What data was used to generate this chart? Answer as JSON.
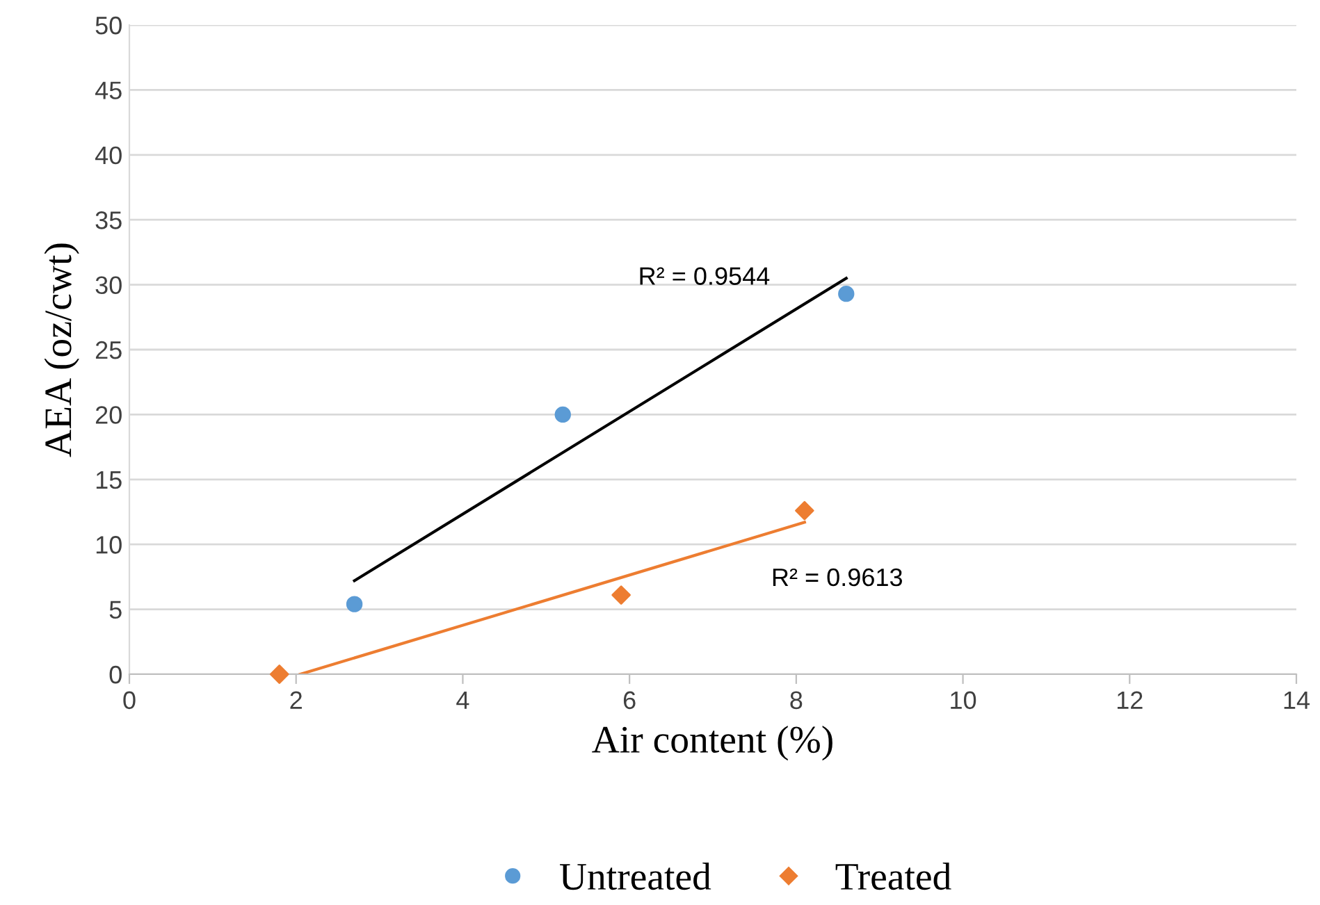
{
  "chart_data": {
    "type": "scatter",
    "xlabel": "Air content (%)",
    "ylabel": "AEA (oz/cwt)",
    "series": [
      {
        "name": "Untreated",
        "marker": "circle",
        "color": "#5b9bd5",
        "x": [
          2.7,
          5.2,
          8.6
        ],
        "values": [
          5.4,
          20.0,
          29.3
        ]
      },
      {
        "name": "Treated",
        "marker": "diamond",
        "color": "#ed7d31",
        "x": [
          1.8,
          5.9,
          8.1
        ],
        "values": [
          0,
          6.1,
          12.6
        ]
      },
      {
        "type": "line",
        "marker": "none",
        "color": "#000000",
        "x": [
          2.7,
          8.6
        ],
        "values": [
          7.2,
          30.5
        ]
      },
      {
        "type": "line",
        "marker": "none",
        "color": "#ed7d31",
        "x": [
          2.05,
          8.1
        ],
        "values": [
          0,
          11.7
        ]
      }
    ],
    "annotations": [
      "R² = 0.9544",
      "R² = 0.9613"
    ],
    "xlim": [
      0,
      14
    ],
    "xticks": [
      0,
      2,
      4,
      6,
      8,
      10,
      12,
      14
    ],
    "ylim": [
      0,
      50
    ],
    "yticks": [
      0,
      5,
      10,
      15,
      20,
      25,
      30,
      35,
      40,
      45,
      50
    ],
    "grid": "y",
    "legend": "bottom"
  }
}
